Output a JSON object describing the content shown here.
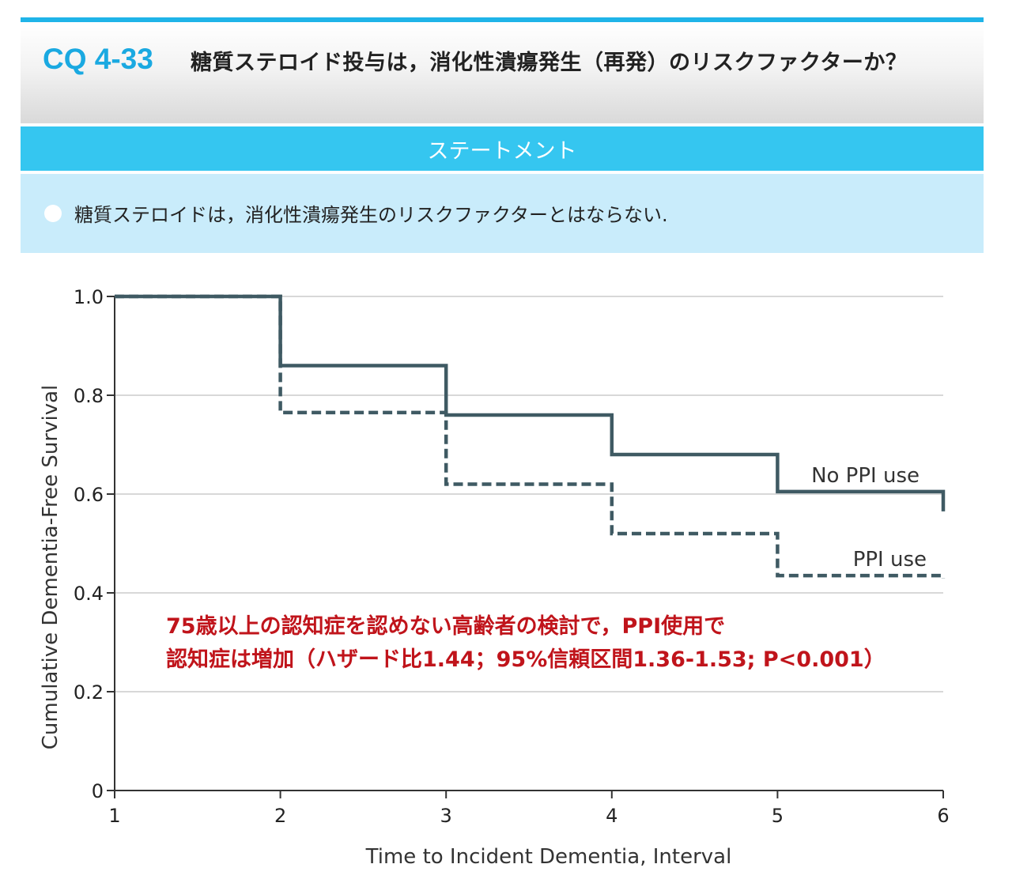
{
  "header": {
    "cq_number": "CQ 4-33",
    "question": "糖質ステロイド投与は，消化性潰瘍発生（再発）のリスクファクターか？"
  },
  "statement": {
    "heading": "ステートメント",
    "text": "糖質ステロイドは，消化性潰瘍発生のリスクファクターとはならない."
  },
  "annotation": {
    "line1": "75歳以上の認知症を認めない高齢者の検討で，PPI使用で",
    "line2": "認知症は増加（ハザード比1.44；95%信頼区間1.36-1.53; P<0.001）"
  },
  "colors": {
    "accent": "#1aa9e1",
    "statement_bar": "#35c6f0",
    "statement_body": "#c9ecfb",
    "series_line": "#3f5a63",
    "annotation": "#c0141b"
  },
  "chart_data": {
    "type": "line",
    "step": true,
    "xlabel": "Time to Incident Dementia, Interval",
    "ylabel": "Cumulative Dementia-Free Survival",
    "xlim": [
      1,
      6
    ],
    "ylim": [
      0,
      1.0
    ],
    "x_ticks": [
      "1",
      "2",
      "3",
      "4",
      "5",
      "6"
    ],
    "y_ticks": [
      "0",
      "0.2",
      "0.4",
      "0.6",
      "0.8",
      "1.0"
    ],
    "grid": "horizontal",
    "series": [
      {
        "name": "No PPI use",
        "style": "solid",
        "x": [
          1,
          2,
          3,
          4,
          5,
          6
        ],
        "y": [
          1.0,
          0.86,
          0.76,
          0.68,
          0.605,
          0.565
        ]
      },
      {
        "name": "PPI use",
        "style": "dashed",
        "x": [
          1,
          2,
          3,
          4,
          5,
          6
        ],
        "y": [
          1.0,
          0.765,
          0.62,
          0.52,
          0.435,
          0.43
        ]
      }
    ]
  }
}
